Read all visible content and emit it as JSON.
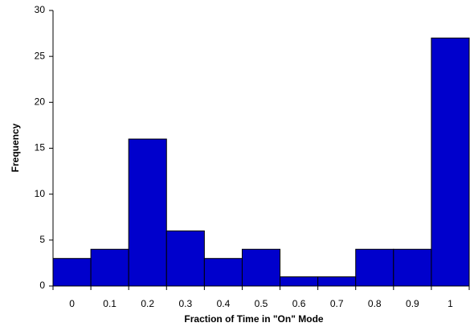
{
  "chart_data": {
    "type": "bar",
    "x_label": "Fraction of Time in \"On\" Mode",
    "y_label": "Frequency",
    "categories": [
      "0",
      "0.1",
      "0.2",
      "0.3",
      "0.4",
      "0.5",
      "0.6",
      "0.7",
      "0.8",
      "0.9",
      "1"
    ],
    "values": [
      3,
      4,
      16,
      6,
      3,
      4,
      1,
      1,
      4,
      4,
      27
    ],
    "color": "#0000cc",
    "ylim": [
      0,
      30
    ],
    "yticks": [
      0,
      5,
      10,
      15,
      20,
      25,
      30
    ],
    "grid": false
  }
}
